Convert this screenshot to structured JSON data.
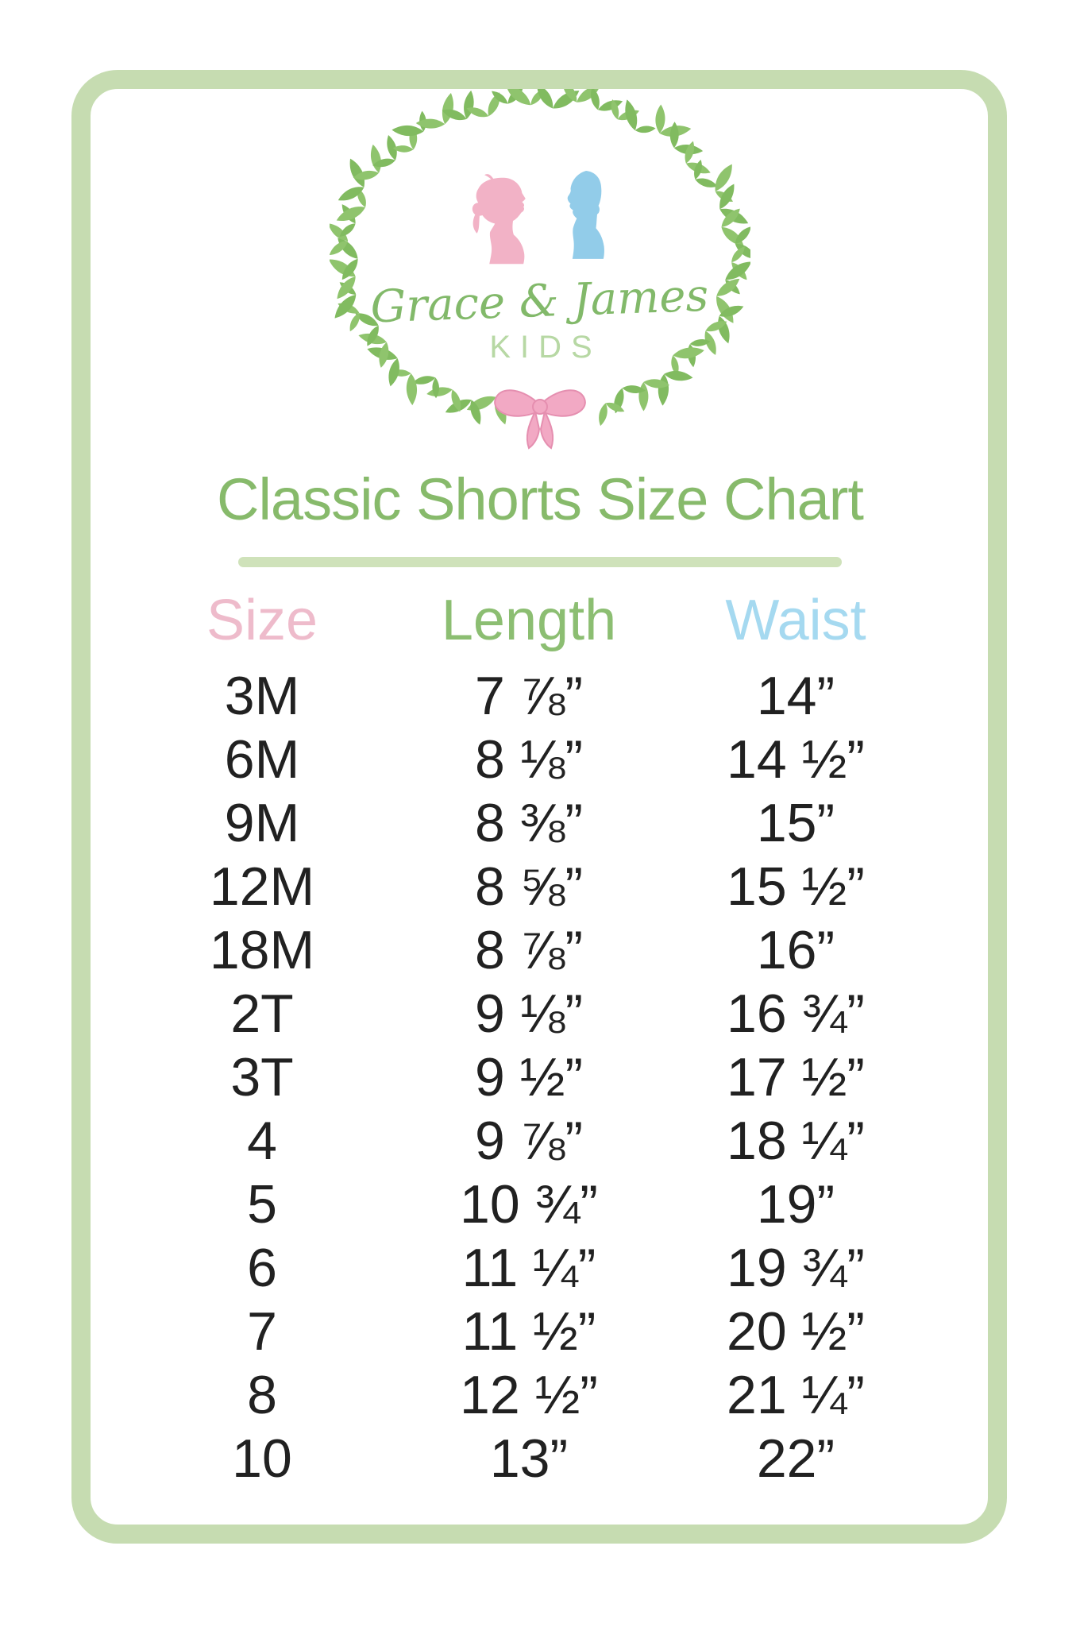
{
  "colors": {
    "frame-green": "#c6dcb1",
    "underline-green": "#cfe2ba",
    "title-green": "#87ba6b",
    "header-pink": "#eebbcb",
    "header-green": "#8cbe72",
    "header-blue": "#a5d9f0",
    "text-dark": "#212121",
    "wreath-green": "#7cb65b",
    "script-green": "#82b96a",
    "kids-green": "#b7d8a4",
    "girl-pink": "#f2b2c6",
    "boy-blue": "#92cce9",
    "bow-pink": "#f2a9c4",
    "bow-pink-dark": "#e58fb0"
  },
  "logo": {
    "brand_script": "Grace & James",
    "brand_sub": "KIDS",
    "icons": [
      "laurel-wreath",
      "girl-silhouette",
      "boy-silhouette",
      "pink-bow"
    ]
  },
  "title": {
    "text": "Classic Shorts Size Chart"
  },
  "table": {
    "headers": [
      {
        "label": "Size"
      },
      {
        "label": "Length"
      },
      {
        "label": "Waist"
      }
    ],
    "rows": [
      [
        "3M",
        "7 ⅞”",
        "14”"
      ],
      [
        "6M",
        "8 ⅛”",
        "14 ½”"
      ],
      [
        "9M",
        "8 ⅜”",
        "15”"
      ],
      [
        "12M",
        "8 ⅝”",
        "15 ½”"
      ],
      [
        "18M",
        "8 ⅞”",
        "16”"
      ],
      [
        "2T",
        "9 ⅛”",
        "16 ¾”"
      ],
      [
        "3T",
        "9 ½”",
        "17 ½”"
      ],
      [
        "4",
        "9 ⅞”",
        "18 ¼”"
      ],
      [
        "5",
        "10 ¾”",
        "19”"
      ],
      [
        "6",
        "11 ¼”",
        "19 ¾”"
      ],
      [
        "7",
        "11 ½”",
        "20 ½”"
      ],
      [
        "8",
        "12 ½”",
        "21 ¼”"
      ],
      [
        "10",
        "13”",
        "22”"
      ]
    ]
  }
}
